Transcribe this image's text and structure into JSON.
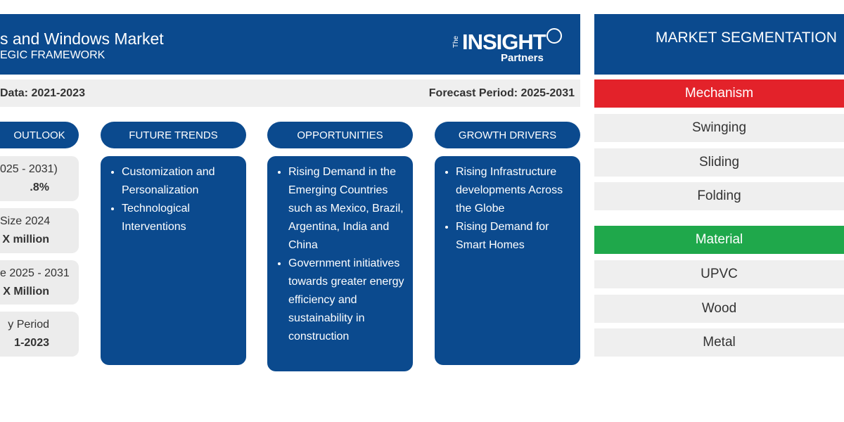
{
  "header": {
    "title": "s and Windows Market",
    "subtitle": "EGIC FRAMEWORK",
    "logo": {
      "small": "The",
      "main": "INSIGHT",
      "sub": "Partners"
    }
  },
  "period_bar": {
    "historic": "Data: 2021-2023",
    "forecast": "Forecast Period: 2025-2031"
  },
  "outlook": {
    "title": "OUTLOOK",
    "cards": [
      {
        "label": "025 - 2031)",
        "value": ".8%"
      },
      {
        "label": "Size 2024",
        "value": "X million"
      },
      {
        "label": "e 2025 - 2031",
        "value": "X Million"
      },
      {
        "label": "y Period",
        "value": "1-2023"
      }
    ]
  },
  "sections": [
    {
      "title": "FUTURE TRENDS",
      "items": [
        "Customization and Personalization",
        "Technological Interventions"
      ]
    },
    {
      "title": "OPPORTUNITIES",
      "items": [
        "Rising Demand in the Emerging Countries such as Mexico, Brazil, Argentina, India and China",
        "Government initiatives towards greater energy efficiency and sustainability in construction"
      ]
    },
    {
      "title": "GROWTH DRIVERS",
      "items": [
        "Rising Infrastructure developments Across the Globe",
        "Rising Demand for Smart Homes"
      ]
    }
  ],
  "segmentation": {
    "title": "MARKET SEGMENTATION",
    "groups": [
      {
        "name": "Mechanism",
        "items": [
          "Swinging",
          "Sliding",
          "Folding"
        ]
      },
      {
        "name": "Material",
        "items": [
          "UPVC",
          "Wood",
          "Metal"
        ]
      }
    ]
  }
}
